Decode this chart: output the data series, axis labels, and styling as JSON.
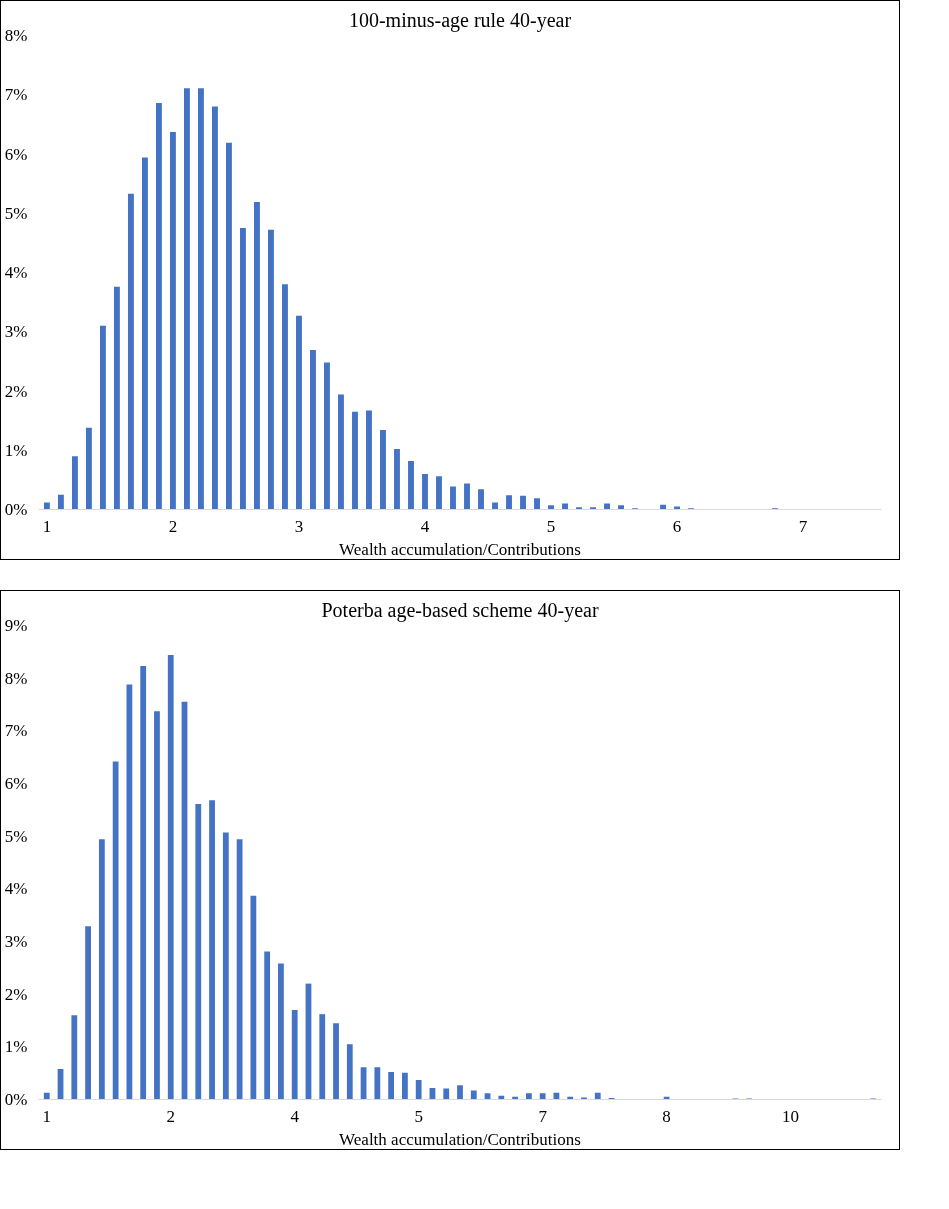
{
  "chart_data": [
    {
      "type": "bar",
      "title": "100-minus-age rule 40-year",
      "xlabel": "Wealth accumulation/Contributions",
      "categories": [
        "1",
        null,
        null,
        null,
        null,
        null,
        null,
        null,
        null,
        "2",
        null,
        null,
        null,
        null,
        null,
        null,
        null,
        null,
        "3",
        null,
        null,
        null,
        null,
        null,
        null,
        null,
        null,
        "4",
        null,
        null,
        null,
        null,
        null,
        null,
        null,
        null,
        "5",
        null,
        null,
        null,
        null,
        null,
        null,
        null,
        null,
        "6",
        null,
        null,
        null,
        null,
        null,
        null,
        null,
        null,
        "7",
        null,
        null,
        null,
        null,
        null
      ],
      "values": [
        0.12,
        0.25,
        0.9,
        1.38,
        3.1,
        3.76,
        5.33,
        5.94,
        6.86,
        6.37,
        7.11,
        7.11,
        6.8,
        6.19,
        4.75,
        5.19,
        4.72,
        3.8,
        3.27,
        2.69,
        2.48,
        1.94,
        1.65,
        1.67,
        1.34,
        1.02,
        0.82,
        0.6,
        0.56,
        0.39,
        0.44,
        0.34,
        0.12,
        0.24,
        0.23,
        0.19,
        0.07,
        0.1,
        0.04,
        0.04,
        0.1,
        0.07,
        0.02,
        null,
        0.08,
        0.05,
        0.02,
        null,
        0,
        0,
        0,
        0,
        0.02,
        0,
        0,
        0,
        0,
        0,
        0,
        null
      ],
      "color": "#4472c4",
      "ylim": [
        0,
        8
      ],
      "yticks": [
        {
          "value": 0,
          "label": "0%"
        },
        {
          "value": 1,
          "label": "1%"
        },
        {
          "value": 2,
          "label": "2%"
        },
        {
          "value": 3,
          "label": "3%"
        },
        {
          "value": 4,
          "label": "4%"
        },
        {
          "value": 5,
          "label": "5%"
        },
        {
          "value": 6,
          "label": "6%"
        },
        {
          "value": 7,
          "label": "7%"
        },
        {
          "value": 8,
          "label": "8%"
        }
      ],
      "grid": false
    },
    {
      "type": "bar",
      "title": "Poterba age-based scheme 40-year",
      "xlabel": "Wealth accumulation/Contributions",
      "categories": [
        "1",
        null,
        null,
        null,
        null,
        null,
        null,
        null,
        null,
        "2",
        null,
        null,
        null,
        null,
        null,
        null,
        null,
        null,
        "4",
        null,
        null,
        null,
        null,
        null,
        null,
        null,
        null,
        "5",
        null,
        null,
        null,
        null,
        null,
        null,
        null,
        null,
        "7",
        null,
        null,
        null,
        null,
        null,
        null,
        null,
        null,
        "8",
        null,
        null,
        null,
        null,
        null,
        null,
        null,
        null,
        "10",
        null,
        null,
        null,
        null,
        null,
        null
      ],
      "values": [
        0.13,
        0.58,
        1.6,
        3.29,
        4.94,
        6.42,
        7.88,
        8.23,
        7.37,
        8.44,
        7.55,
        5.61,
        5.68,
        5.07,
        4.94,
        3.87,
        2.81,
        2.58,
        1.7,
        2.2,
        1.62,
        1.45,
        1.05,
        0.61,
        0.61,
        0.52,
        0.51,
        0.37,
        0.22,
        0.21,
        0.27,
        0.17,
        0.12,
        0.07,
        0.05,
        0.12,
        0.12,
        0.13,
        0.05,
        0.04,
        0.13,
        0.03,
        0,
        0,
        0,
        0.05,
        0,
        0,
        0,
        0,
        0.02,
        0.02,
        0,
        0,
        0,
        0,
        0,
        0,
        0,
        0,
        0.02
      ],
      "color": "#4472c4",
      "ylim": [
        0,
        9
      ],
      "yticks": [
        {
          "value": 0,
          "label": "0%"
        },
        {
          "value": 1,
          "label": "1%"
        },
        {
          "value": 2,
          "label": "2%"
        },
        {
          "value": 3,
          "label": "3%"
        },
        {
          "value": 4,
          "label": "4%"
        },
        {
          "value": 5,
          "label": "5%"
        },
        {
          "value": 6,
          "label": "6%"
        },
        {
          "value": 7,
          "label": "7%"
        },
        {
          "value": 8,
          "label": "8%"
        },
        {
          "value": 9,
          "label": "9%"
        }
      ],
      "grid": false
    }
  ]
}
